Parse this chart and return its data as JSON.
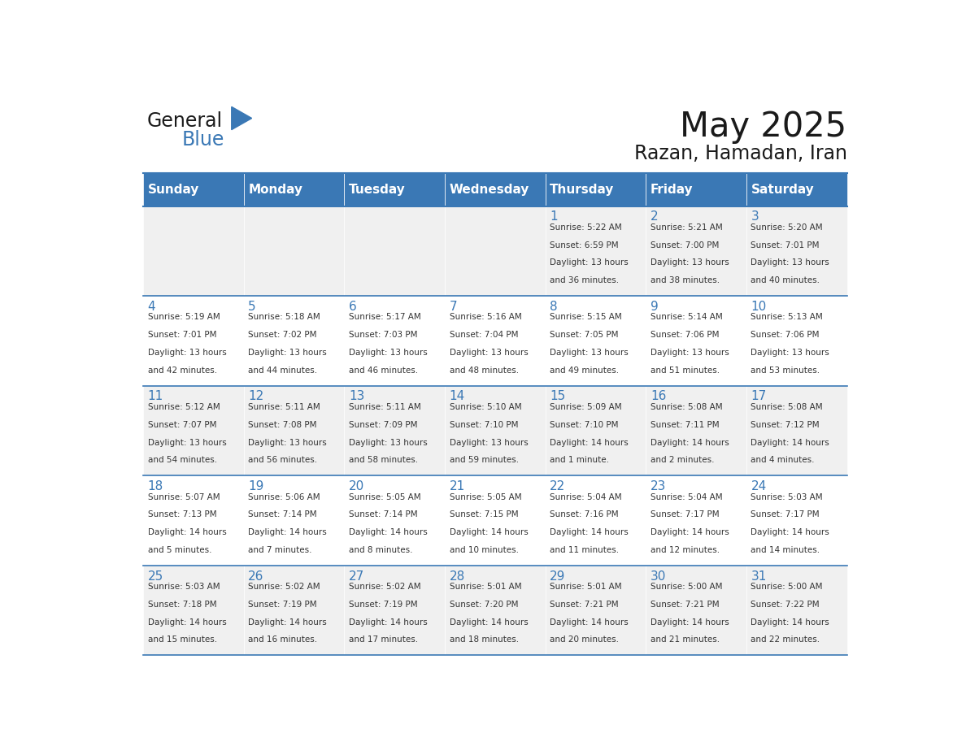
{
  "title": "May 2025",
  "subtitle": "Razan, Hamadan, Iran",
  "header_bg": "#3a78b5",
  "header_text_color": "#ffffff",
  "cell_bg_light": "#f0f0f0",
  "cell_bg_white": "#ffffff",
  "day_number_color": "#3a78b5",
  "text_color": "#333333",
  "days_of_week": [
    "Sunday",
    "Monday",
    "Tuesday",
    "Wednesday",
    "Thursday",
    "Friday",
    "Saturday"
  ],
  "calendar_data": [
    [
      {
        "day": "",
        "sunrise": "",
        "sunset": "",
        "daylight": ""
      },
      {
        "day": "",
        "sunrise": "",
        "sunset": "",
        "daylight": ""
      },
      {
        "day": "",
        "sunrise": "",
        "sunset": "",
        "daylight": ""
      },
      {
        "day": "",
        "sunrise": "",
        "sunset": "",
        "daylight": ""
      },
      {
        "day": "1",
        "sunrise": "5:22 AM",
        "sunset": "6:59 PM",
        "daylight": "13 hours and 36 minutes."
      },
      {
        "day": "2",
        "sunrise": "5:21 AM",
        "sunset": "7:00 PM",
        "daylight": "13 hours and 38 minutes."
      },
      {
        "day": "3",
        "sunrise": "5:20 AM",
        "sunset": "7:01 PM",
        "daylight": "13 hours and 40 minutes."
      }
    ],
    [
      {
        "day": "4",
        "sunrise": "5:19 AM",
        "sunset": "7:01 PM",
        "daylight": "13 hours and 42 minutes."
      },
      {
        "day": "5",
        "sunrise": "5:18 AM",
        "sunset": "7:02 PM",
        "daylight": "13 hours and 44 minutes."
      },
      {
        "day": "6",
        "sunrise": "5:17 AM",
        "sunset": "7:03 PM",
        "daylight": "13 hours and 46 minutes."
      },
      {
        "day": "7",
        "sunrise": "5:16 AM",
        "sunset": "7:04 PM",
        "daylight": "13 hours and 48 minutes."
      },
      {
        "day": "8",
        "sunrise": "5:15 AM",
        "sunset": "7:05 PM",
        "daylight": "13 hours and 49 minutes."
      },
      {
        "day": "9",
        "sunrise": "5:14 AM",
        "sunset": "7:06 PM",
        "daylight": "13 hours and 51 minutes."
      },
      {
        "day": "10",
        "sunrise": "5:13 AM",
        "sunset": "7:06 PM",
        "daylight": "13 hours and 53 minutes."
      }
    ],
    [
      {
        "day": "11",
        "sunrise": "5:12 AM",
        "sunset": "7:07 PM",
        "daylight": "13 hours and 54 minutes."
      },
      {
        "day": "12",
        "sunrise": "5:11 AM",
        "sunset": "7:08 PM",
        "daylight": "13 hours and 56 minutes."
      },
      {
        "day": "13",
        "sunrise": "5:11 AM",
        "sunset": "7:09 PM",
        "daylight": "13 hours and 58 minutes."
      },
      {
        "day": "14",
        "sunrise": "5:10 AM",
        "sunset": "7:10 PM",
        "daylight": "13 hours and 59 minutes."
      },
      {
        "day": "15",
        "sunrise": "5:09 AM",
        "sunset": "7:10 PM",
        "daylight": "14 hours and 1 minute."
      },
      {
        "day": "16",
        "sunrise": "5:08 AM",
        "sunset": "7:11 PM",
        "daylight": "14 hours and 2 minutes."
      },
      {
        "day": "17",
        "sunrise": "5:08 AM",
        "sunset": "7:12 PM",
        "daylight": "14 hours and 4 minutes."
      }
    ],
    [
      {
        "day": "18",
        "sunrise": "5:07 AM",
        "sunset": "7:13 PM",
        "daylight": "14 hours and 5 minutes."
      },
      {
        "day": "19",
        "sunrise": "5:06 AM",
        "sunset": "7:14 PM",
        "daylight": "14 hours and 7 minutes."
      },
      {
        "day": "20",
        "sunrise": "5:05 AM",
        "sunset": "7:14 PM",
        "daylight": "14 hours and 8 minutes."
      },
      {
        "day": "21",
        "sunrise": "5:05 AM",
        "sunset": "7:15 PM",
        "daylight": "14 hours and 10 minutes."
      },
      {
        "day": "22",
        "sunrise": "5:04 AM",
        "sunset": "7:16 PM",
        "daylight": "14 hours and 11 minutes."
      },
      {
        "day": "23",
        "sunrise": "5:04 AM",
        "sunset": "7:17 PM",
        "daylight": "14 hours and 12 minutes."
      },
      {
        "day": "24",
        "sunrise": "5:03 AM",
        "sunset": "7:17 PM",
        "daylight": "14 hours and 14 minutes."
      }
    ],
    [
      {
        "day": "25",
        "sunrise": "5:03 AM",
        "sunset": "7:18 PM",
        "daylight": "14 hours and 15 minutes."
      },
      {
        "day": "26",
        "sunrise": "5:02 AM",
        "sunset": "7:19 PM",
        "daylight": "14 hours and 16 minutes."
      },
      {
        "day": "27",
        "sunrise": "5:02 AM",
        "sunset": "7:19 PM",
        "daylight": "14 hours and 17 minutes."
      },
      {
        "day": "28",
        "sunrise": "5:01 AM",
        "sunset": "7:20 PM",
        "daylight": "14 hours and 18 minutes."
      },
      {
        "day": "29",
        "sunrise": "5:01 AM",
        "sunset": "7:21 PM",
        "daylight": "14 hours and 20 minutes."
      },
      {
        "day": "30",
        "sunrise": "5:00 AM",
        "sunset": "7:21 PM",
        "daylight": "14 hours and 21 minutes."
      },
      {
        "day": "31",
        "sunrise": "5:00 AM",
        "sunset": "7:22 PM",
        "daylight": "14 hours and 22 minutes."
      }
    ]
  ]
}
